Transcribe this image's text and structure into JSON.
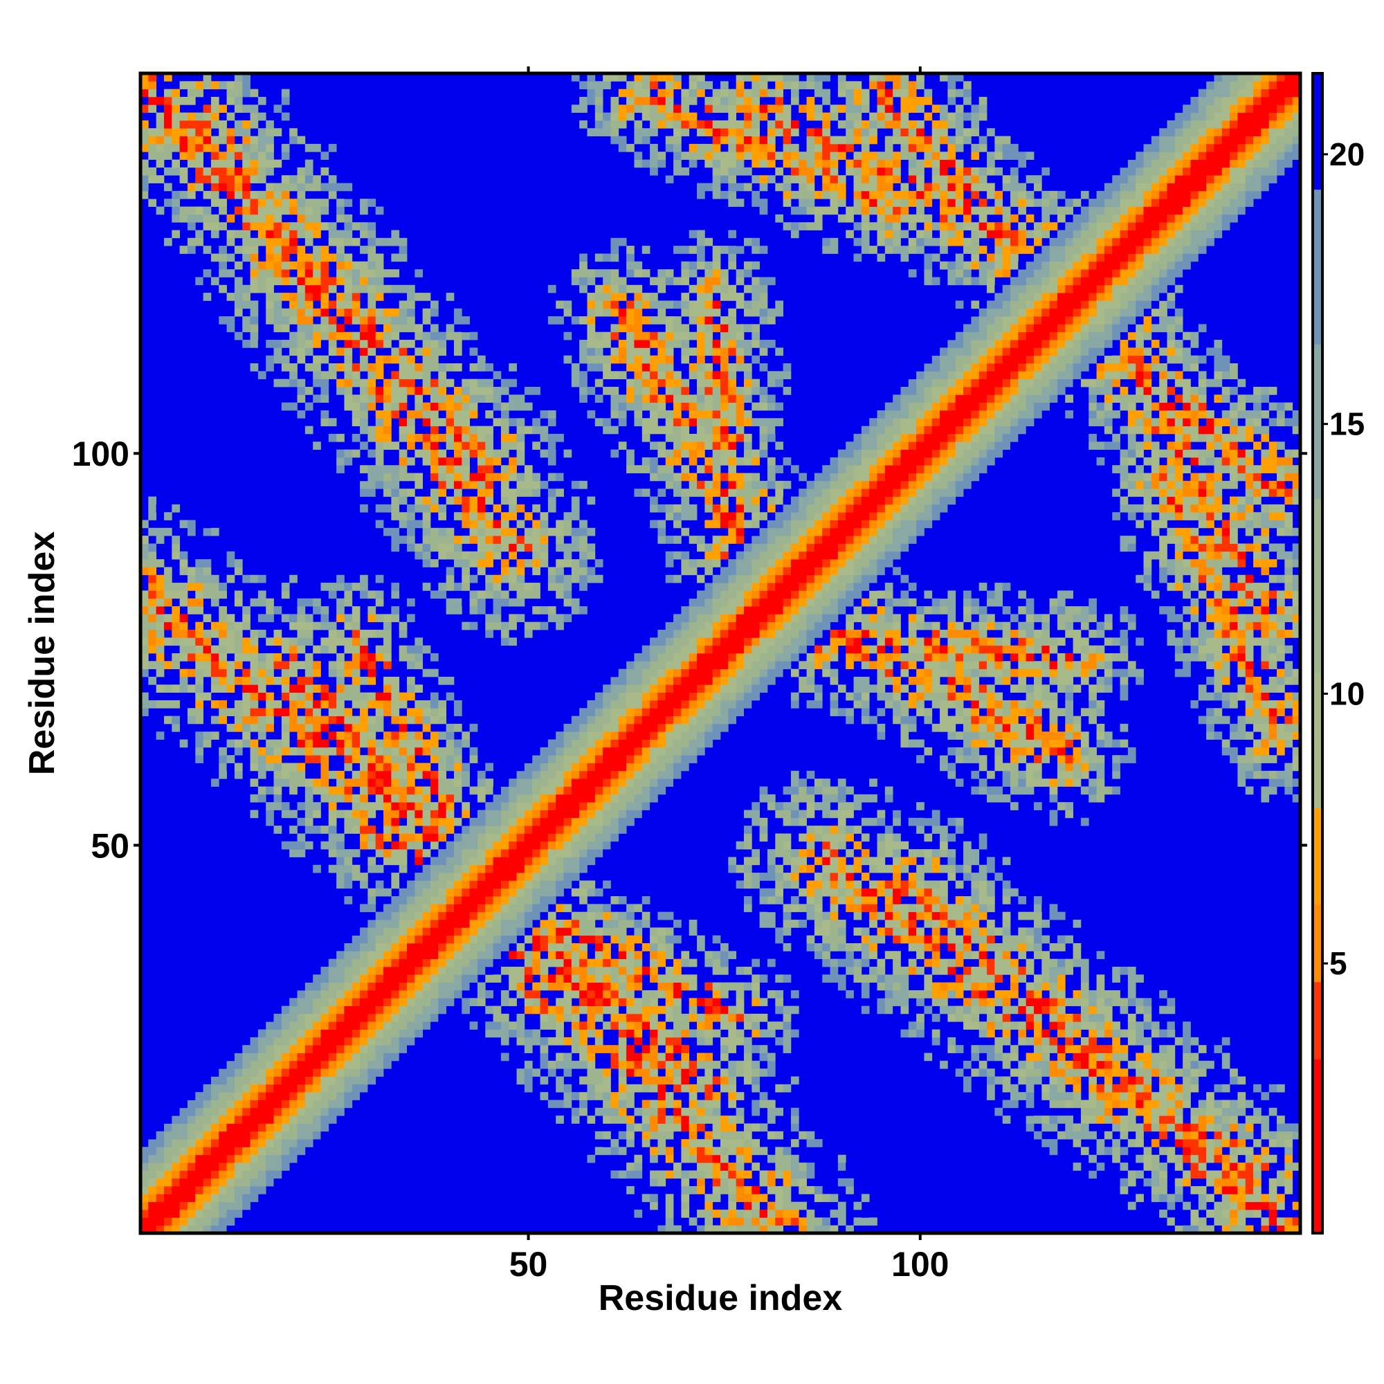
{
  "chart_data": {
    "type": "heatmap",
    "title": "",
    "xlabel": "Residue index",
    "ylabel": "Residue index",
    "n_residues": 148,
    "xlim": [
      1,
      148
    ],
    "ylim": [
      1,
      148
    ],
    "x_ticks": [
      50,
      100
    ],
    "y_ticks": [
      50,
      100
    ],
    "colorbar": {
      "ticks": [
        5,
        10,
        15,
        20
      ],
      "range": [
        0,
        21.5
      ],
      "colors": [
        "#ff0000",
        "#ff8c00",
        "#a9ba8a",
        "#6f92b8",
        "#0000ee"
      ]
    },
    "contact_bands": [
      {
        "x_from": 1,
        "y_from": 146,
        "x_to": 45,
        "y_to": 98,
        "width": 9
      },
      {
        "x_from": 1,
        "y_from": 82,
        "x_to": 72,
        "y_to": 20,
        "width": 10
      },
      {
        "x_from": 80,
        "y_from": 144,
        "x_to": 118,
        "y_to": 124,
        "width": 8
      },
      {
        "x_from": 118,
        "y_from": 118,
        "x_to": 146,
        "y_to": 96,
        "width": 8
      },
      {
        "x_from": 132,
        "y_from": 96,
        "x_to": 146,
        "y_to": 64,
        "width": 7
      },
      {
        "x_from": 88,
        "y_from": 48,
        "x_to": 146,
        "y_to": 4,
        "width": 10
      },
      {
        "x_from": 74,
        "y_from": 120,
        "x_to": 76,
        "y_to": 86,
        "width": 7
      },
      {
        "x_from": 82,
        "y_from": 82,
        "x_to": 118,
        "y_to": 62,
        "width": 8
      },
      {
        "x_from": 30,
        "y_from": 52,
        "x_to": 76,
        "y_to": 28,
        "width": 7
      }
    ]
  }
}
